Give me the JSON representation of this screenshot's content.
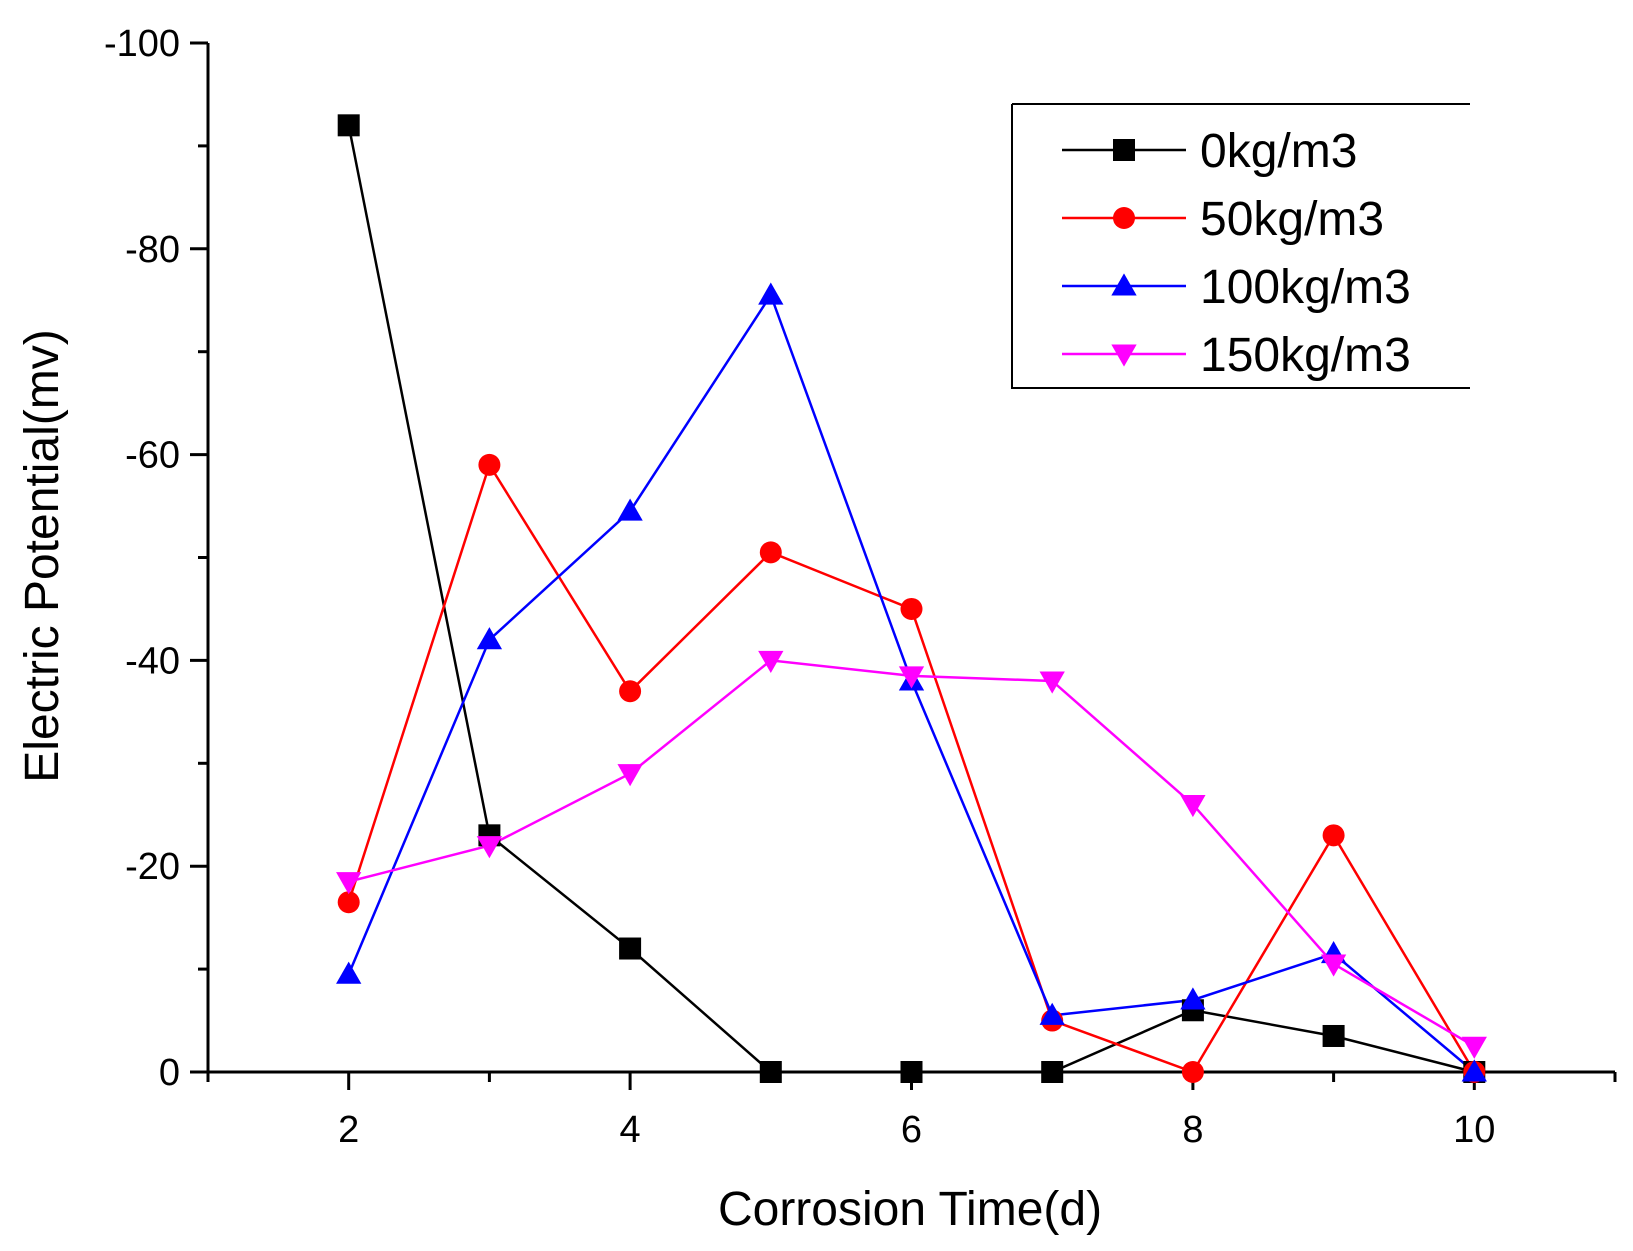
{
  "chart_data": {
    "type": "line",
    "title": "",
    "xlabel": "Corrosion Time(d)",
    "ylabel": "Electric Potential(mv)",
    "xlim": [
      1,
      11
    ],
    "ylim": [
      0,
      -100
    ],
    "x_ticks": [
      2,
      4,
      6,
      8,
      10
    ],
    "y_ticks": [
      0,
      -20,
      -40,
      -60,
      -80,
      -100
    ],
    "x_tick_labels": [
      "2",
      "4",
      "6",
      "8",
      "10"
    ],
    "y_tick_labels": [
      "0",
      "-20",
      "-40",
      "-60",
      "-80",
      "-100"
    ],
    "x": [
      2,
      3,
      4,
      5,
      6,
      7,
      8,
      9,
      10
    ],
    "legend_position": "top-right",
    "series": [
      {
        "name": "0kg/m3",
        "color": "#000000",
        "marker": "square",
        "values": [
          -92,
          -23,
          -12,
          0,
          0,
          0,
          -6,
          -3.5,
          0
        ]
      },
      {
        "name": "50kg/m3",
        "color": "#ff0000",
        "marker": "circle",
        "values": [
          -16.5,
          -59,
          -37,
          -50.5,
          -45,
          -5,
          0,
          -23,
          0
        ]
      },
      {
        "name": "100kg/m3",
        "color": "#0000ff",
        "marker": "triangle-up",
        "values": [
          -9.5,
          -42,
          -54.5,
          -75.5,
          -38,
          -5.5,
          -7,
          -11.5,
          0
        ]
      },
      {
        "name": "150kg/m3",
        "color": "#ff00ff",
        "marker": "triangle-down",
        "values": [
          -18.5,
          -22,
          -29,
          -40,
          -38.5,
          -38,
          -26,
          -10.5,
          -2.5
        ]
      }
    ]
  }
}
